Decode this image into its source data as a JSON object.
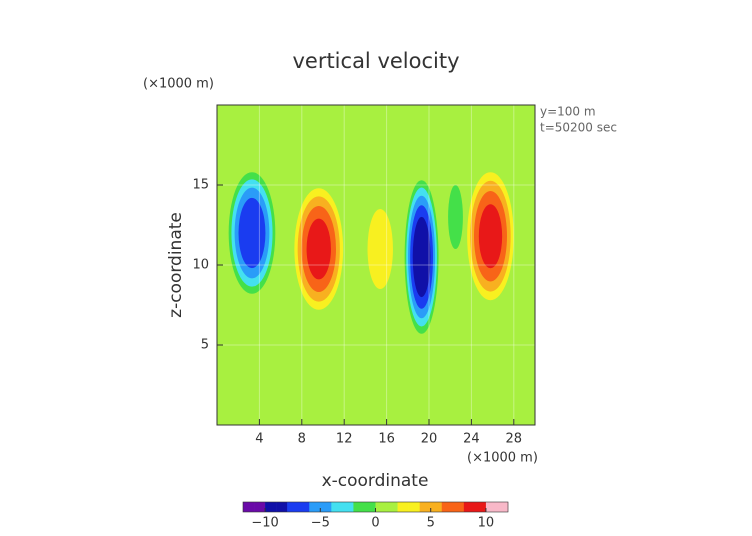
{
  "chart_data": {
    "type": "contour",
    "title": "vertical velocity",
    "y_unit": "(×1000 m)",
    "x_unit": "(×1000 m)",
    "annotations": [
      "y=100 m",
      "t=50200 sec"
    ],
    "xlabel": "x-coordinate",
    "ylabel": "z-coordinate",
    "xlim": [
      0,
      30
    ],
    "ylim": [
      0,
      20
    ],
    "xticks": [
      4,
      8,
      12,
      16,
      20,
      24,
      28
    ],
    "yticks": [
      5,
      10,
      15
    ],
    "grid": true,
    "background_value": 0,
    "features": [
      {
        "x": 3.3,
        "z": 12,
        "value": -9,
        "rx": 2.2,
        "rz": 3.8
      },
      {
        "x": 9.6,
        "z": 11,
        "value": 8,
        "rx": 2.3,
        "rz": 3.8
      },
      {
        "x": 15.4,
        "z": 11,
        "value": 3,
        "rx": 1.2,
        "rz": 2.5
      },
      {
        "x": 19.3,
        "z": 10.5,
        "value": -11,
        "rx": 1.6,
        "rz": 4.8
      },
      {
        "x": 22.5,
        "z": 13,
        "value": -3,
        "rx": 0.7,
        "rz": 2
      },
      {
        "x": 25.8,
        "z": 11.8,
        "value": 8,
        "rx": 2.2,
        "rz": 4
      }
    ],
    "clim": [
      -12,
      12
    ],
    "colormap": [
      "#6a0aa8",
      "#1010a8",
      "#1a3cf0",
      "#2a9cf8",
      "#44e0f0",
      "#44e049",
      "#a8f040",
      "#f8f020",
      "#f8b020",
      "#f86418",
      "#e81818",
      "#f8b8c8"
    ],
    "cticks": [
      {
        "value": -10,
        "label": "−10"
      },
      {
        "value": -5,
        "label": "−5"
      },
      0,
      5,
      10
    ]
  }
}
